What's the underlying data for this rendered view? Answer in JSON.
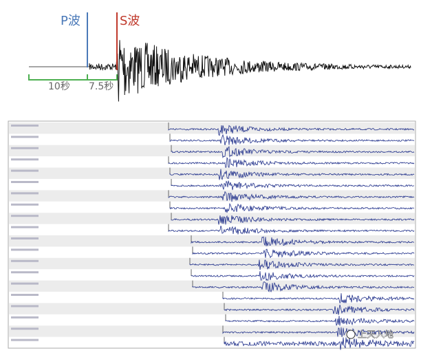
{
  "top": {
    "p_label": "P波",
    "s_label": "S波",
    "interval_1": "10秒",
    "interval_2": "7.5秒"
  },
  "watermark": "上天入地"
}
